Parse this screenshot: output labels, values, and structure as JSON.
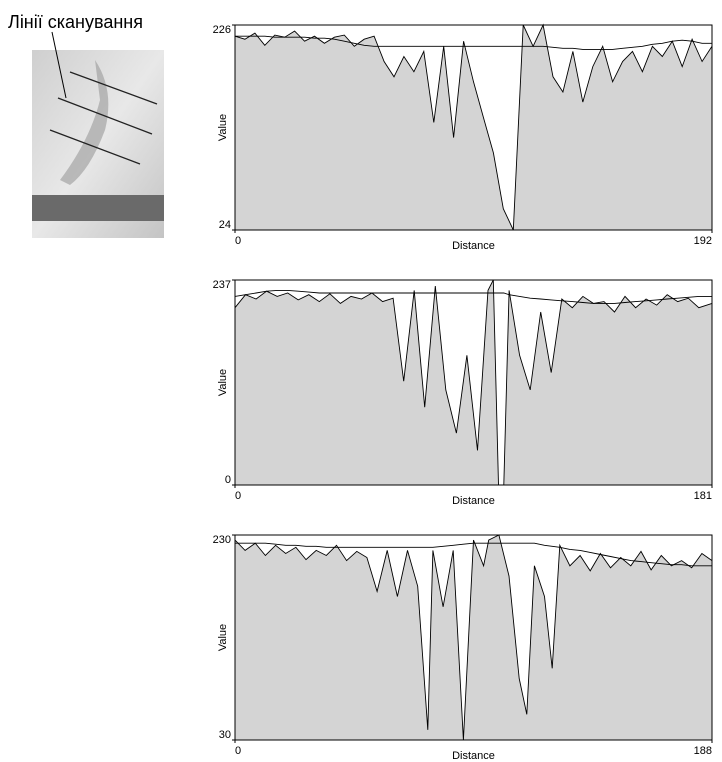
{
  "label": "Лінії сканування",
  "chart_data": [
    {
      "type": "area",
      "xlabel": "Distance",
      "ylabel": "Value",
      "xlim": [
        0,
        192
      ],
      "ylim": [
        24,
        226
      ],
      "xticks": [
        0,
        192
      ],
      "yticks": [
        24,
        226
      ],
      "x": [
        0,
        4,
        8,
        12,
        16,
        20,
        24,
        28,
        32,
        36,
        40,
        44,
        48,
        52,
        56,
        60,
        64,
        68,
        72,
        76,
        80,
        84,
        88,
        92,
        96,
        100,
        104,
        108,
        112,
        116,
        120,
        124,
        128,
        132,
        136,
        140,
        144,
        148,
        152,
        156,
        160,
        164,
        168,
        172,
        176,
        180,
        184,
        188,
        192
      ],
      "series": [
        {
          "color": "#000000",
          "fill": "#d4d4d4",
          "values": [
            215,
            212,
            218,
            206,
            216,
            214,
            220,
            210,
            215,
            208,
            214,
            216,
            205,
            212,
            215,
            190,
            175,
            195,
            180,
            200,
            130,
            205,
            115,
            210,
            170,
            135,
            100,
            45,
            24,
            226,
            205,
            226,
            175,
            160,
            200,
            150,
            185,
            205,
            170,
            190,
            200,
            180,
            205,
            195,
            210,
            185,
            212,
            190,
            205
          ]
        },
        {
          "color": "#000000",
          "values": [
            215,
            215,
            215,
            215,
            214,
            214,
            214,
            214,
            213,
            213,
            212,
            210,
            208,
            206,
            205,
            205,
            205,
            205,
            205,
            205,
            205,
            205,
            205,
            205,
            205,
            205,
            205,
            205,
            205,
            205,
            205,
            205,
            204,
            203,
            203,
            202,
            202,
            202,
            202,
            203,
            204,
            205,
            207,
            208,
            210,
            211,
            210,
            208,
            208
          ]
        }
      ]
    },
    {
      "type": "area",
      "xlabel": "Distance",
      "ylabel": "Value",
      "xlim": [
        0,
        181
      ],
      "ylim": [
        0,
        237
      ],
      "xticks": [
        0,
        181
      ],
      "yticks": [
        0,
        237
      ],
      "x": [
        0,
        4,
        8,
        12,
        16,
        20,
        24,
        28,
        32,
        36,
        40,
        44,
        48,
        52,
        56,
        60,
        64,
        68,
        72,
        76,
        80,
        84,
        88,
        92,
        96,
        98,
        100,
        102,
        104,
        108,
        112,
        116,
        120,
        124,
        128,
        132,
        136,
        140,
        144,
        148,
        152,
        156,
        160,
        164,
        168,
        172,
        176,
        181
      ],
      "series": [
        {
          "color": "#000000",
          "fill": "#d4d4d4",
          "values": [
            205,
            220,
            215,
            224,
            218,
            222,
            214,
            220,
            212,
            221,
            210,
            218,
            215,
            222,
            212,
            216,
            120,
            225,
            90,
            230,
            110,
            60,
            150,
            40,
            225,
            237,
            0,
            0,
            225,
            150,
            110,
            200,
            130,
            215,
            205,
            218,
            210,
            212,
            200,
            218,
            205,
            215,
            208,
            220,
            212,
            216,
            205,
            210
          ]
        },
        {
          "color": "#000000",
          "values": [
            218,
            220,
            222,
            224,
            225,
            225,
            224,
            223,
            222,
            222,
            222,
            222,
            222,
            222,
            222,
            222,
            222,
            222,
            222,
            222,
            222,
            222,
            222,
            222,
            222,
            222,
            222,
            222,
            220,
            218,
            216,
            215,
            214,
            213,
            212,
            211,
            210,
            210,
            210,
            211,
            212,
            213,
            214,
            215,
            216,
            217,
            218,
            218
          ]
        }
      ]
    },
    {
      "type": "area",
      "xlabel": "Distance",
      "ylabel": "Value",
      "xlim": [
        0,
        188
      ],
      "ylim": [
        30,
        230
      ],
      "xticks": [
        0,
        188
      ],
      "yticks": [
        30,
        230
      ],
      "x": [
        0,
        4,
        8,
        12,
        16,
        20,
        24,
        28,
        32,
        36,
        40,
        44,
        48,
        52,
        56,
        60,
        64,
        68,
        72,
        76,
        78,
        82,
        86,
        90,
        94,
        98,
        100,
        104,
        108,
        112,
        115,
        118,
        122,
        125,
        128,
        132,
        136,
        140,
        144,
        148,
        152,
        156,
        160,
        164,
        168,
        172,
        176,
        180,
        184,
        188
      ],
      "series": [
        {
          "color": "#000000",
          "fill": "#d4d4d4",
          "values": [
            225,
            215,
            222,
            210,
            220,
            212,
            218,
            206,
            215,
            210,
            220,
            205,
            214,
            208,
            175,
            215,
            170,
            215,
            180,
            40,
            215,
            160,
            215,
            30,
            225,
            200,
            225,
            230,
            190,
            90,
            55,
            200,
            170,
            100,
            220,
            200,
            210,
            195,
            212,
            198,
            208,
            200,
            214,
            196,
            210,
            200,
            205,
            198,
            212,
            205
          ]
        },
        {
          "color": "#000000",
          "values": [
            222,
            222,
            222,
            222,
            221,
            220,
            220,
            219,
            219,
            218,
            218,
            218,
            218,
            218,
            218,
            218,
            218,
            218,
            218,
            218,
            218,
            219,
            220,
            221,
            222,
            222,
            222,
            222,
            222,
            222,
            222,
            222,
            220,
            219,
            218,
            216,
            215,
            213,
            211,
            209,
            207,
            205,
            204,
            203,
            202,
            201,
            201,
            200,
            200,
            200
          ]
        }
      ]
    }
  ]
}
